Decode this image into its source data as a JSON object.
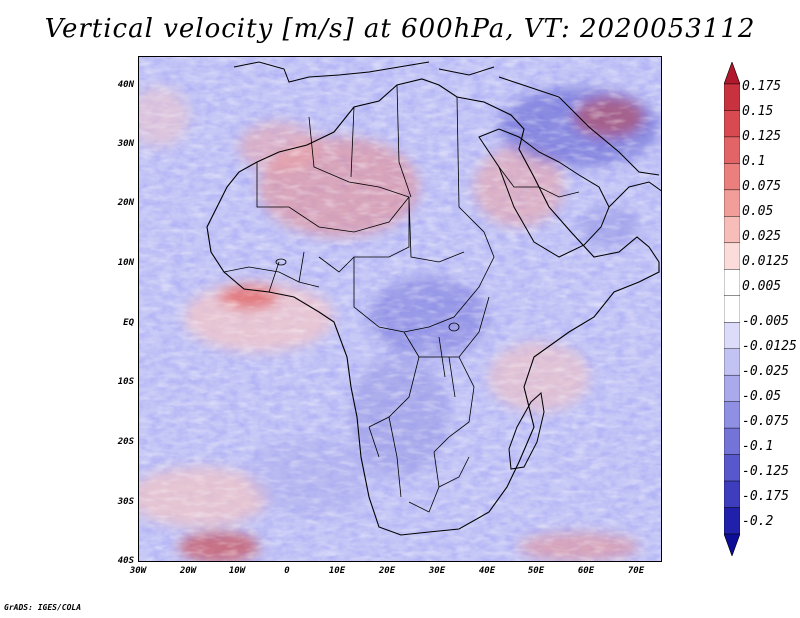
{
  "title": "Vertical velocity [m/s] at 600hPa, VT: 2020053112",
  "map": {
    "y_labels": [
      "40N",
      "30N",
      "20N",
      "10N",
      "EQ",
      "10S",
      "20S",
      "30S",
      "40S"
    ],
    "x_labels": [
      "30W",
      "20W",
      "10W",
      "0",
      "10E",
      "20E",
      "30E",
      "40E",
      "50E",
      "60E",
      "70E"
    ]
  },
  "colorbar": {
    "levels": [
      "0.175",
      "0.15",
      "0.125",
      "0.1",
      "0.075",
      "0.05",
      "0.025",
      "0.0125",
      "0.005",
      "-0.005",
      "-0.0125",
      "-0.025",
      "-0.05",
      "-0.075",
      "-0.1",
      "-0.125",
      "-0.175",
      "-0.2"
    ],
    "colors": [
      "#b2182b",
      "#c8323e",
      "#d84a50",
      "#e26466",
      "#ea7f7d",
      "#f19d99",
      "#f6bdb9",
      "#fbdcda",
      "#ffffff",
      "#ffffff",
      "#dcdcfa",
      "#c3c3f3",
      "#a9a9ec",
      "#8f8fe3",
      "#7474d8",
      "#5858cc",
      "#3d3dbd",
      "#2020aa",
      "#0c0c96"
    ]
  },
  "footer": "GrADS: IGES/COLA"
}
